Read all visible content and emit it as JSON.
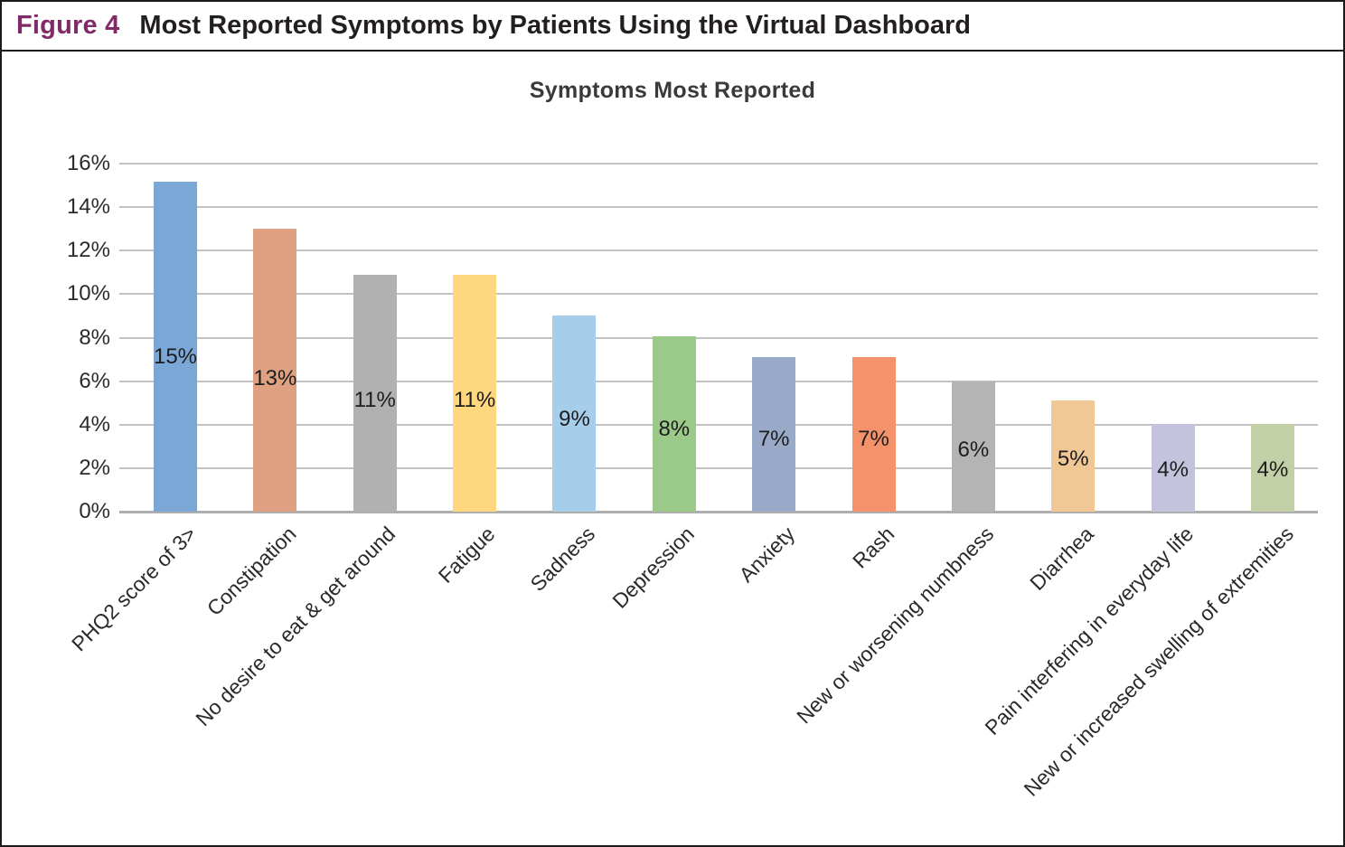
{
  "header": {
    "figure_label": "Figure 4",
    "title": "Most Reported Symptoms by Patients Using the Virtual Dashboard"
  },
  "chart_data": {
    "type": "bar",
    "title": "Symptoms Most Reported",
    "categories": [
      "PHQ2 score of 3>",
      "Constipation",
      "No desire to eat & get around",
      "Fatigue",
      "Sadness",
      "Depression",
      "Anxiety",
      "Rash",
      "New or worsening numbness",
      "Diarrhea",
      "Pain interfering in everyday life",
      "New or increased swelling of extremities"
    ],
    "values": [
      15,
      13,
      11,
      11,
      9,
      8,
      7,
      7,
      6,
      5,
      4,
      4
    ],
    "value_labels": [
      "15%",
      "13%",
      "11%",
      "11%",
      "9%",
      "8%",
      "7%",
      "7%",
      "6%",
      "5%",
      "4%",
      "4%"
    ],
    "bar_heights_pct": [
      15.15,
      13.0,
      10.9,
      10.9,
      9.0,
      8.05,
      7.1,
      7.1,
      6.0,
      5.1,
      4.05,
      4.05
    ],
    "bar_colors": [
      "#7BA7D6",
      "#DFA181",
      "#B1B1B1",
      "#FED77E",
      "#A6CDEA",
      "#9AC989",
      "#98AAC8",
      "#F4936B",
      "#B4B4B4",
      "#F0C795",
      "#C3C3DD",
      "#C2CFA7"
    ],
    "xlabel": "",
    "ylabel": "",
    "ylim": [
      0,
      16
    ],
    "y_ticks": [
      "0%",
      "2%",
      "4%",
      "6%",
      "8%",
      "10%",
      "12%",
      "14%",
      "16%"
    ],
    "y_tick_values": [
      0,
      2,
      4,
      6,
      8,
      10,
      12,
      14,
      16
    ],
    "grid": "horizontal gridlines on",
    "legend": "none",
    "value_label_position": "inside bars",
    "x_label_rotation_deg": 45
  },
  "colors": {
    "figure_label_text": "#812A68",
    "header_title_text": "#231F20",
    "chart_title_text": "#3A3A3A",
    "gridline": "#C2C2C2",
    "baseline": "#AEAEAE",
    "tick_text": "#2B2B2B",
    "border": "#1A1A1A"
  }
}
